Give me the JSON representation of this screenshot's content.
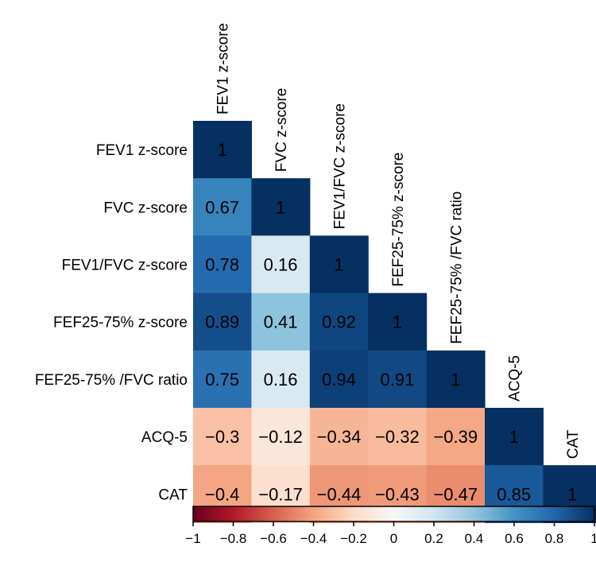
{
  "chart_data": {
    "type": "heatmap",
    "variables": [
      "FEV1 z-score",
      "FVC z-score",
      "FEV1/FVC z-score",
      "FEF25-75% z-score",
      "FEF25-75% /FVC ratio",
      "ACQ-5",
      "CAT"
    ],
    "matrix_lower": [
      [
        1
      ],
      [
        0.67,
        1
      ],
      [
        0.78,
        0.16,
        1
      ],
      [
        0.89,
        0.41,
        0.92,
        1
      ],
      [
        0.75,
        0.16,
        0.94,
        0.91,
        1
      ],
      [
        -0.3,
        -0.12,
        -0.34,
        -0.32,
        -0.39,
        1
      ],
      [
        -0.4,
        -0.17,
        -0.44,
        -0.43,
        -0.47,
        0.85,
        1
      ]
    ],
    "value_labels": [
      [
        "1"
      ],
      [
        "0.67",
        "1"
      ],
      [
        "0.78",
        "0.16",
        "1"
      ],
      [
        "0.89",
        "0.41",
        "0.92",
        "1"
      ],
      [
        "0.75",
        "0.16",
        "0.94",
        "0.91",
        "1"
      ],
      [
        "−0.3",
        "−0.12",
        "−0.34",
        "−0.32",
        "−0.39",
        "1"
      ],
      [
        "−0.4",
        "−0.17",
        "−0.44",
        "−0.43",
        "−0.47",
        "0.85",
        "1"
      ]
    ],
    "colorbar": {
      "range": [
        -1,
        1
      ],
      "ticks": [
        -1,
        -0.8,
        -0.6,
        -0.4,
        -0.2,
        0,
        0.2,
        0.4,
        0.6,
        0.8,
        1
      ],
      "tick_labels": [
        "−1",
        "−0.8",
        "−0.6",
        "−0.4",
        "−0.2",
        "0",
        "0.2",
        "0.4",
        "0.6",
        "0.8",
        "1"
      ],
      "colors": [
        "#67001f",
        "#b2182b",
        "#d6604d",
        "#f4a582",
        "#fddbc7",
        "#f7f7f7",
        "#d1e5f0",
        "#92c5de",
        "#4393c3",
        "#2166ac",
        "#053061"
      ]
    }
  }
}
